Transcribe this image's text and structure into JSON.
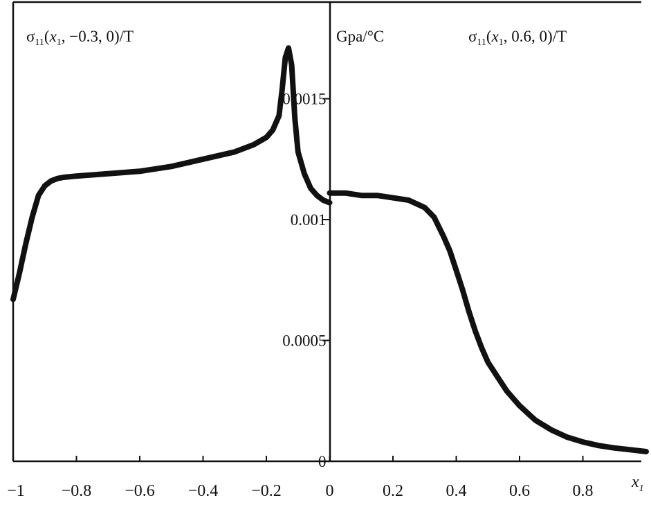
{
  "chart_data": {
    "type": "line",
    "units_label": "Gpa/°C",
    "xlabel": "x1",
    "xlim": [
      -1,
      1
    ],
    "ylim": [
      0,
      0.0019
    ],
    "grid": false,
    "legend": "none",
    "x_ticks": [
      {
        "value": -1,
        "label": "−1"
      },
      {
        "value": -0.8,
        "label": "−0.8"
      },
      {
        "value": -0.6,
        "label": "−0.6"
      },
      {
        "value": -0.4,
        "label": "−0.4"
      },
      {
        "value": -0.2,
        "label": "−0.2"
      },
      {
        "value": 0,
        "label": "0"
      },
      {
        "value": 0.2,
        "label": "0.2"
      },
      {
        "value": 0.4,
        "label": "0.4"
      },
      {
        "value": 0.6,
        "label": "0.6"
      },
      {
        "value": 0.8,
        "label": "0.8"
      }
    ],
    "y_ticks": [
      {
        "value": 0,
        "label": "0"
      },
      {
        "value": 0.0005,
        "label": "0.0005"
      },
      {
        "value": 0.001,
        "label": "0.001"
      },
      {
        "value": 0.0015,
        "label": "0.0015"
      }
    ],
    "series": [
      {
        "name": "σ11(x1, −0.3, 0)/T",
        "color": "#111111",
        "points": [
          [
            -1.0,
            0.00067
          ],
          [
            -0.98,
            0.00078
          ],
          [
            -0.96,
            0.0009
          ],
          [
            -0.94,
            0.00101
          ],
          [
            -0.92,
            0.0011
          ],
          [
            -0.9,
            0.00114
          ],
          [
            -0.88,
            0.00116
          ],
          [
            -0.86,
            0.00117
          ],
          [
            -0.84,
            0.001175
          ],
          [
            -0.8,
            0.00118
          ],
          [
            -0.7,
            0.00119
          ],
          [
            -0.6,
            0.0012
          ],
          [
            -0.5,
            0.00122
          ],
          [
            -0.4,
            0.00125
          ],
          [
            -0.3,
            0.00128
          ],
          [
            -0.24,
            0.00131
          ],
          [
            -0.2,
            0.00134
          ],
          [
            -0.18,
            0.00137
          ],
          [
            -0.16,
            0.00143
          ],
          [
            -0.15,
            0.00154
          ],
          [
            -0.14,
            0.00167
          ],
          [
            -0.13,
            0.00171
          ],
          [
            -0.12,
            0.00164
          ],
          [
            -0.11,
            0.00142
          ],
          [
            -0.1,
            0.00128
          ],
          [
            -0.08,
            0.00119
          ],
          [
            -0.06,
            0.00113
          ],
          [
            -0.04,
            0.0011
          ],
          [
            -0.02,
            0.00108
          ],
          [
            0.0,
            0.00107
          ]
        ]
      },
      {
        "name": "σ11(x1, 0.6, 0)/T",
        "color": "#111111",
        "points": [
          [
            0.0,
            0.00111
          ],
          [
            0.05,
            0.00111
          ],
          [
            0.1,
            0.0011
          ],
          [
            0.15,
            0.0011
          ],
          [
            0.2,
            0.00109
          ],
          [
            0.25,
            0.00108
          ],
          [
            0.3,
            0.00105
          ],
          [
            0.33,
            0.00101
          ],
          [
            0.36,
            0.00093
          ],
          [
            0.38,
            0.00087
          ],
          [
            0.4,
            0.00079
          ],
          [
            0.42,
            0.00071
          ],
          [
            0.44,
            0.00062
          ],
          [
            0.46,
            0.00054
          ],
          [
            0.48,
            0.00047
          ],
          [
            0.5,
            0.00041
          ],
          [
            0.53,
            0.00035
          ],
          [
            0.56,
            0.00029
          ],
          [
            0.6,
            0.00023
          ],
          [
            0.65,
            0.00017
          ],
          [
            0.7,
            0.00013
          ],
          [
            0.75,
            0.0001
          ],
          [
            0.8,
            8e-05
          ],
          [
            0.85,
            6.5e-05
          ],
          [
            0.9,
            5.5e-05
          ],
          [
            0.95,
            4.8e-05
          ],
          [
            1.0,
            4e-05
          ]
        ]
      }
    ]
  }
}
